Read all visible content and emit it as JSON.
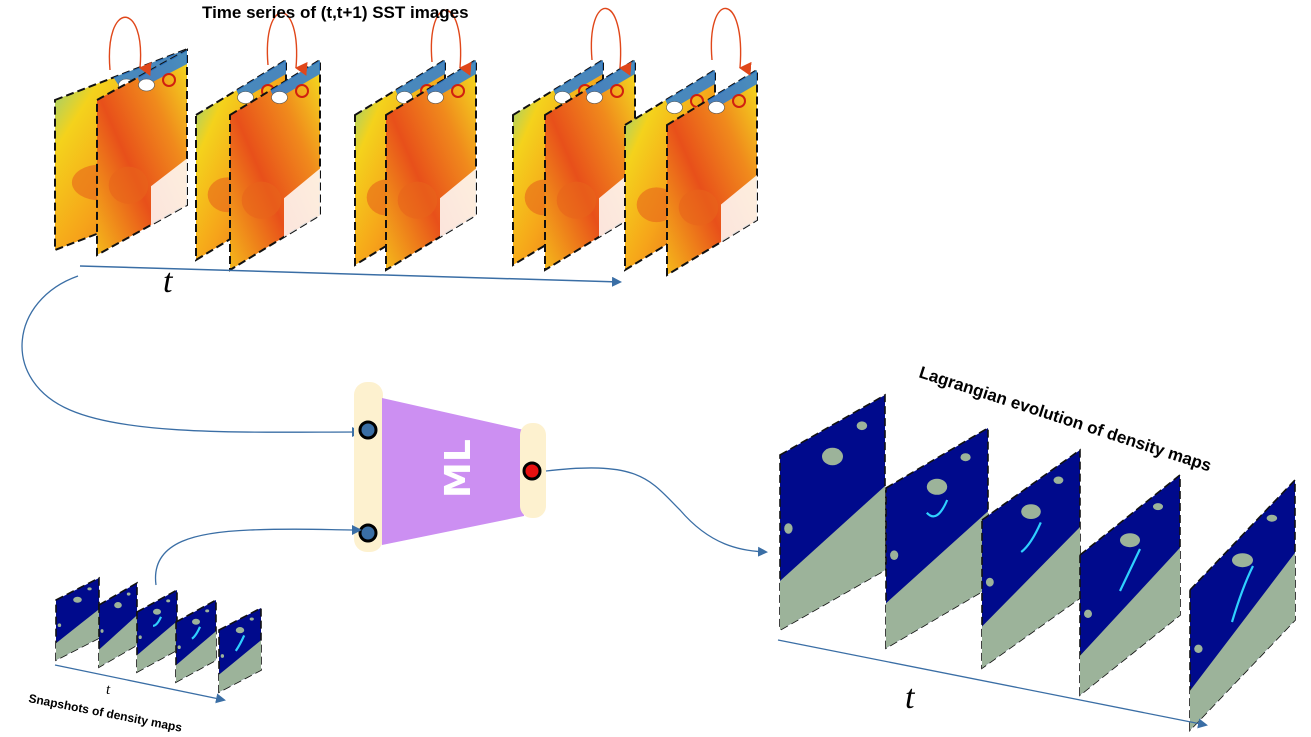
{
  "title_top": "Time series of (t,t+1) SST images",
  "title_right": "Lagrangian evolution of density maps",
  "title_left": "Snapshots of density maps",
  "time_symbol": "t",
  "ml_label": "ML",
  "colors": {
    "sst_warm": "#e8571a",
    "sst_mid": "#f5c21b",
    "sst_cool": "#7fd39a",
    "sst_cold": "#1f6fd0",
    "density_bg": "#000a8c",
    "land": "#9cb39a",
    "ml_body": "#cc8ff2",
    "ml_bar": "#fdf1cf",
    "arrow": "#3a6ea5",
    "pair_arrow": "#e0471a",
    "node_in": "#3a6ea5",
    "node_out": "#e81010"
  }
}
